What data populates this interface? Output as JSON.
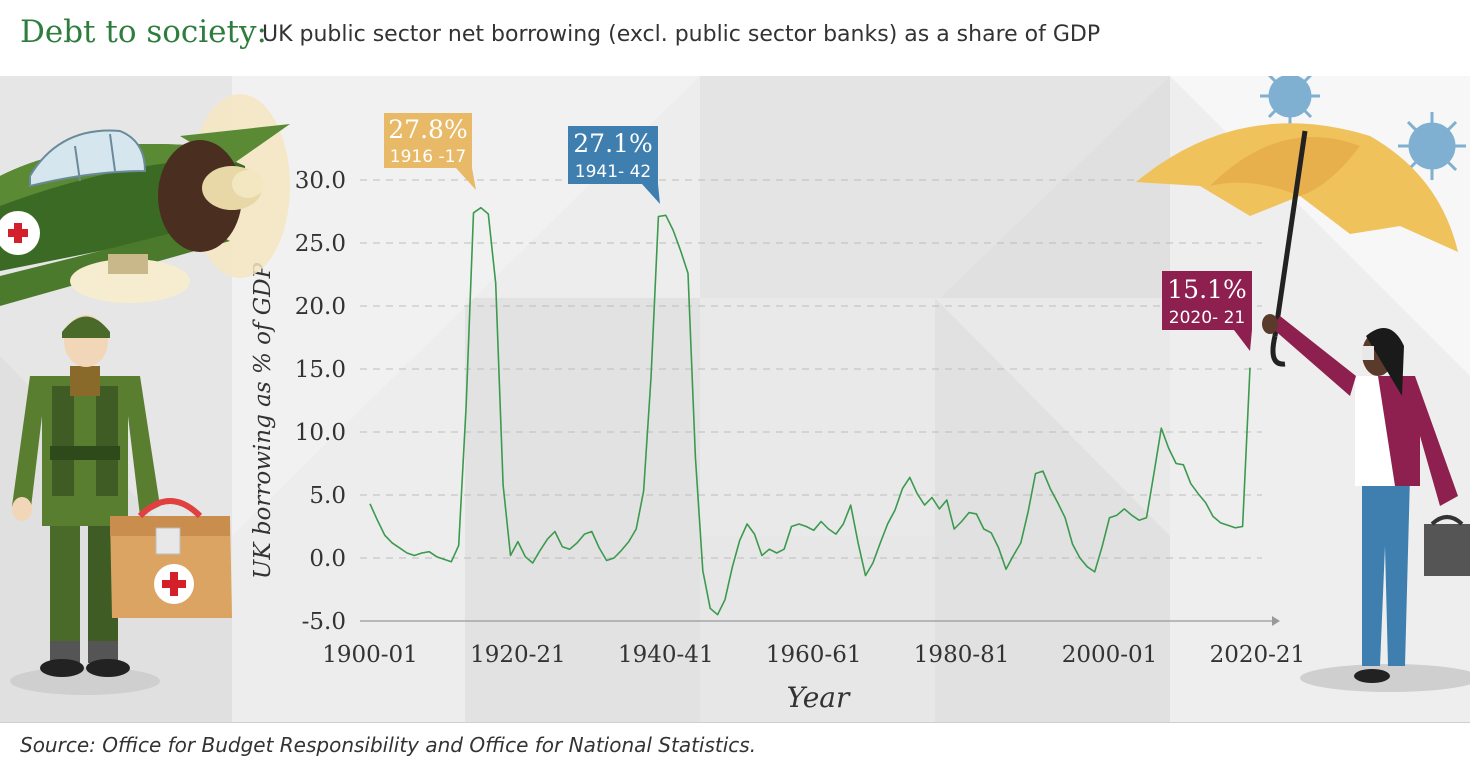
{
  "header": {
    "title_lead": "Debt to society:",
    "title_rest": "UK public sector net borrowing (excl. public sector banks) as a share of GDP"
  },
  "footer": {
    "source": "Source: Office for Budget Responsibility and Office for National Statistics."
  },
  "colors": {
    "line": "#3b9a4e",
    "callout_ww1": "#e8b967",
    "callout_ww2": "#3f7fb0",
    "callout_covid": "#8e2050",
    "title_accent": "#2e7d3e"
  },
  "chart_data": {
    "type": "line",
    "xlabel": "Year",
    "ylabel": "UK borrowing as % of GDP",
    "ylim": [
      -5,
      30
    ],
    "x_start_year": 1900,
    "y_ticks": [
      "30.0",
      "25.0",
      "20.0",
      "15.0",
      "10.0",
      "5.0",
      "0.0",
      "-5.0"
    ],
    "x_ticks": [
      "1900-01",
      "1920-21",
      "1940-41",
      "1960-61",
      "1980-81",
      "2000-01",
      "2020-21"
    ],
    "grid": "horizontal-dashed",
    "series": [
      {
        "values": [
          4.3,
          3.0,
          1.8,
          1.2,
          0.8,
          0.4,
          0.2,
          0.4,
          0.5,
          0.1,
          -0.1,
          -0.3,
          1.0,
          12.0,
          27.4,
          27.8,
          27.3,
          21.8,
          5.8,
          0.2,
          1.3,
          0.1,
          -0.4,
          0.6,
          1.5,
          2.1,
          0.9,
          0.7,
          1.2,
          1.9,
          2.1,
          0.8,
          -0.2,
          0.0,
          0.6,
          1.3,
          2.3,
          5.3,
          14.3,
          27.1,
          27.2,
          26.0,
          24.4,
          22.6,
          8.0,
          -1.0,
          -4.0,
          -4.5,
          -3.3,
          -0.7,
          1.4,
          2.7,
          1.9,
          0.2,
          0.7,
          0.4,
          0.7,
          2.5,
          2.7,
          2.5,
          2.2,
          2.9,
          2.3,
          1.9,
          2.7,
          4.2,
          1.2,
          -1.4,
          -0.4,
          1.2,
          2.7,
          3.8,
          5.5,
          6.4,
          5.1,
          4.2,
          4.8,
          3.9,
          4.6,
          2.3,
          2.9,
          3.6,
          3.5,
          2.3,
          2.0,
          0.8,
          -0.9,
          0.2,
          1.2,
          3.7,
          6.7,
          6.9,
          5.5,
          4.4,
          3.2,
          1.1,
          0.0,
          -0.7,
          -1.1,
          0.9,
          3.2,
          3.4,
          3.9,
          3.4,
          3.0,
          3.2,
          6.7,
          10.3,
          8.7,
          7.5,
          7.4,
          5.9,
          5.1,
          4.4,
          3.3,
          2.8,
          2.6,
          2.4,
          2.5,
          15.1
        ]
      }
    ],
    "annotations": [
      {
        "value": "27.8%",
        "period": "1916 -17"
      },
      {
        "value": "27.1%",
        "period": "1941- 42"
      },
      {
        "value": "15.1%",
        "period": "2020- 21"
      }
    ]
  }
}
